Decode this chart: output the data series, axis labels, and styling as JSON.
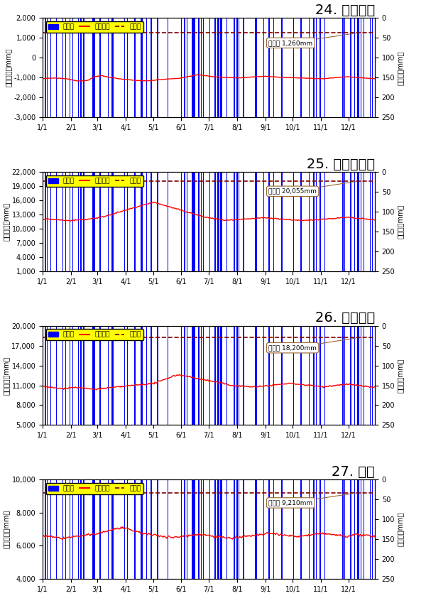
{
  "charts": [
    {
      "title": "24. 新川浜橋",
      "ylabel_left": "地下水位（mm）",
      "ylabel_right": "降水量（mm）",
      "ylim_left": [
        -3000,
        2000
      ],
      "ylim_right": [
        0,
        250
      ],
      "yticks_left": [
        -3000,
        -2000,
        -1000,
        0,
        1000,
        2000
      ],
      "yticks_right": [
        0,
        50,
        100,
        150,
        200,
        250
      ],
      "groundlevel": 1260,
      "groundlevel_label": "地盤高 1,260mm",
      "water_level_base": -1050,
      "water_level_variation": [
        0,
        20,
        30,
        10,
        -20,
        -100,
        -120,
        -80,
        100,
        150,
        80,
        30,
        -20,
        -50,
        -80,
        -100,
        -120,
        -80,
        -50,
        -20,
        0,
        20,
        80,
        150,
        200,
        150,
        100,
        80,
        60,
        50,
        40,
        60,
        80,
        100,
        120,
        100,
        80,
        60,
        50,
        40,
        30,
        20,
        0,
        -10,
        20,
        50,
        80,
        100,
        60,
        40,
        20,
        0
      ]
    },
    {
      "title": "25. 三芳水源地",
      "ylabel_left": "地下水位（mm）",
      "ylabel_right": "降水量（mm）",
      "ylim_left": [
        1000,
        22000
      ],
      "ylim_right": [
        0,
        250
      ],
      "yticks_left": [
        1000,
        4000,
        7000,
        10000,
        13000,
        16000,
        19000,
        22000
      ],
      "yticks_right": [
        0,
        50,
        100,
        150,
        200,
        250
      ],
      "groundlevel": 20055,
      "groundlevel_label": "地盤高 20,055mm",
      "water_level_base": 12000,
      "water_level_variation": [
        0,
        0,
        -100,
        -200,
        -300,
        -200,
        -100,
        0,
        200,
        400,
        800,
        1200,
        1600,
        2000,
        2400,
        2800,
        3200,
        3600,
        3200,
        2800,
        2400,
        2000,
        1600,
        1200,
        800,
        400,
        200,
        0,
        -200,
        -200,
        -100,
        0,
        100,
        200,
        300,
        200,
        100,
        0,
        -100,
        -200,
        -300,
        -200,
        -100,
        0,
        100,
        200,
        300,
        400,
        200,
        100,
        0,
        -100
      ]
    },
    {
      "title": "26. 北水源地",
      "ylabel_left": "地下水位（mm）",
      "ylabel_right": "降水量（mm）",
      "ylim_left": [
        5000,
        20000
      ],
      "ylim_right": [
        0,
        250
      ],
      "yticks_left": [
        5000,
        8000,
        11000,
        14000,
        17000,
        20000
      ],
      "yticks_right": [
        0,
        50,
        100,
        150,
        200,
        250
      ],
      "groundlevel": 18200,
      "groundlevel_label": "地盤高 18,200mm",
      "water_level_base": 10800,
      "water_level_variation": [
        0,
        -100,
        -200,
        -300,
        -200,
        -100,
        -200,
        -300,
        -400,
        -300,
        -200,
        -100,
        0,
        100,
        200,
        300,
        400,
        500,
        800,
        1200,
        1600,
        1800,
        1600,
        1400,
        1200,
        1000,
        800,
        600,
        400,
        200,
        100,
        50,
        0,
        -50,
        100,
        200,
        300,
        400,
        500,
        400,
        300,
        200,
        100,
        0,
        100,
        200,
        300,
        400,
        200,
        100,
        0,
        -100
      ]
    },
    {
      "title": "27. 周布",
      "ylabel_left": "地下水位（mm）",
      "ylabel_right": "降水量（mm）",
      "ylim_left": [
        4000,
        10000
      ],
      "ylim_right": [
        0,
        250
      ],
      "yticks_left": [
        4000,
        6000,
        8000,
        10000
      ],
      "yticks_right": [
        0,
        50,
        100,
        150,
        200,
        250
      ],
      "groundlevel": 9210,
      "groundlevel_label": "地盤高 9,210mm",
      "water_level_base": 6600,
      "water_level_variation": [
        0,
        -50,
        -100,
        -150,
        -100,
        -50,
        0,
        50,
        100,
        200,
        300,
        400,
        500,
        400,
        300,
        200,
        100,
        50,
        0,
        -50,
        -100,
        -50,
        0,
        50,
        100,
        50,
        0,
        -50,
        -100,
        -150,
        -100,
        -50,
        0,
        50,
        100,
        150,
        100,
        50,
        0,
        -50,
        0,
        50,
        100,
        150,
        100,
        50,
        0,
        -50,
        100,
        50,
        0,
        -50
      ]
    }
  ],
  "months": [
    "1/1",
    "2/1",
    "3/1",
    "4/1",
    "5/1",
    "6/1",
    "7/1",
    "8/1",
    "9/1",
    "10/1",
    "11/1",
    "12/1"
  ],
  "bar_color": "#0000FF",
  "line_color": "#FF0000",
  "groundlevel_color": "#800000",
  "bg_color": "#E0F8F8",
  "legend_bg": "#FFFF00",
  "title_fontsize": 14,
  "axis_fontsize": 7,
  "tick_fontsize": 7
}
